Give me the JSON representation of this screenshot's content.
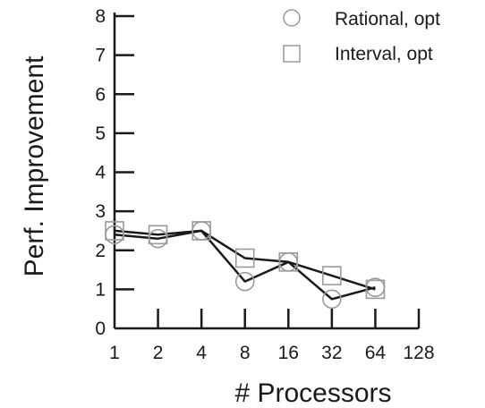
{
  "chart_data": {
    "type": "line",
    "xlabel": "# Processors",
    "ylabel": "Perf. Improvement",
    "x_scale": "log2",
    "x_ticks": [
      "1",
      "2",
      "4",
      "8",
      "16",
      "32",
      "64",
      "128"
    ],
    "x_tick_values": [
      1,
      2,
      4,
      8,
      16,
      32,
      64,
      128
    ],
    "y_ticks": [
      "0",
      "1",
      "2",
      "3",
      "4",
      "5",
      "6",
      "7",
      "8"
    ],
    "ylim": [
      0,
      8
    ],
    "xlim": [
      1,
      128
    ],
    "grid": false,
    "legend_position": "top-right",
    "series": [
      {
        "name": "Rational, opt",
        "marker": "circle",
        "x": [
          1,
          2,
          4,
          8,
          16,
          32,
          64
        ],
        "values": [
          2.4,
          2.3,
          2.5,
          1.2,
          1.7,
          0.75,
          1.05
        ]
      },
      {
        "name": "Interval, opt",
        "marker": "square",
        "x": [
          1,
          2,
          4,
          8,
          16,
          32,
          64
        ],
        "values": [
          2.5,
          2.4,
          2.5,
          1.8,
          1.7,
          1.35,
          1.0
        ]
      }
    ],
    "colors": {
      "axis": "#1a1a1a",
      "line": "#1a1a1a",
      "marker": "#9a9a9a"
    }
  }
}
